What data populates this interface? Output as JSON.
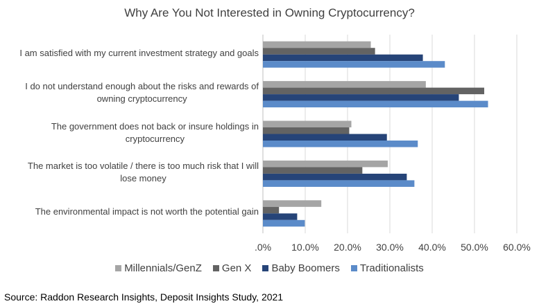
{
  "chart_data": {
    "type": "bar",
    "orientation": "horizontal",
    "title": "Why Are You Not Interested in Owning Cryptocurrency?",
    "categories": [
      [
        "I am satisfied with my current investment strategy and goals"
      ],
      [
        "I do not understand enough about the risks and rewards of",
        "owning cryptocurrency"
      ],
      [
        "The government does not back or insure holdings in",
        "cryptocurrency"
      ],
      [
        "The market is too volatile / there is too much risk that I will",
        "lose money"
      ],
      [
        "The environmental impact is not worth the potential gain"
      ]
    ],
    "series": [
      {
        "name": "Millennials/GenZ",
        "color": "#A5A5A5",
        "values": [
          25.5,
          38.5,
          20.9,
          29.5,
          13.8
        ]
      },
      {
        "name": "Gen X",
        "color": "#636363",
        "values": [
          26.5,
          52.3,
          20.4,
          23.5,
          3.8
        ]
      },
      {
        "name": "Baby Boomers",
        "color": "#264478",
        "values": [
          37.8,
          46.3,
          29.3,
          34.0,
          8.1
        ]
      },
      {
        "name": "Traditionalists",
        "color": "#5B8BC9",
        "values": [
          43.0,
          53.2,
          36.6,
          35.8,
          9.9
        ]
      }
    ],
    "xlim": [
      0,
      60
    ],
    "xticks": [
      ".0%",
      "10.0%",
      "20.0%",
      "30.0%",
      "40.0%",
      "50.0%",
      "60.0%"
    ],
    "grid": true,
    "legend_position": "bottom"
  },
  "source": "Source: Raddon Research Insights, Deposit Insights Study, 2021"
}
